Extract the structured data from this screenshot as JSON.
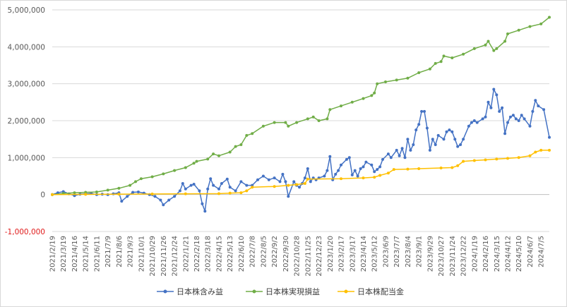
{
  "chart_data": {
    "type": "line",
    "title": "",
    "xlabel": "",
    "ylabel": "",
    "ylim": [
      -1000000,
      5000000
    ],
    "yticks": [
      -1000000,
      0,
      1000000,
      2000000,
      3000000,
      4000000,
      5000000
    ],
    "ytick_labels": [
      "-1,000,000",
      "0",
      "1,000,000",
      "2,000,000",
      "3,000,000",
      "4,000,000",
      "5,000,000"
    ],
    "negative_tick_color": "#e01b1b",
    "grid": "horizontal",
    "legend_position": "bottom",
    "x_start": "2021/2/19",
    "x_end": "2024/7/26",
    "xtick_labels": [
      "2021/2/19",
      "2021/3/19",
      "2021/4/16",
      "2021/5/14",
      "2021/6/11",
      "2021/7/9",
      "2021/8/6",
      "2021/9/3",
      "2021/10/1",
      "2021/10/29",
      "2021/11/26",
      "2021/12/24",
      "2022/1/21",
      "2022/2/18",
      "2022/3/18",
      "2022/4/15",
      "2022/5/13",
      "2022/6/10",
      "2022/7/8",
      "2022/8/5",
      "2022/9/2",
      "2022/9/30",
      "2022/10/28",
      "2022/11/25",
      "2022/12/23",
      "2023/1/20",
      "2023/2/17",
      "2023/3/17",
      "2023/4/14",
      "2023/5/12",
      "2023/6/9",
      "2023/7/7",
      "2023/8/4",
      "2023/9/1",
      "2023/9/29",
      "2023/10/27",
      "2023/11/24",
      "2023/12/22",
      "2024/1/19",
      "2024/2/16",
      "2024/3/15",
      "2024/4/12",
      "2024/5/10",
      "2024/6/7",
      "2024/7/5"
    ],
    "series": [
      {
        "name": "日本株含み益",
        "color": "#4472c4",
        "points": [
          [
            "2021/2/19",
            0
          ],
          [
            "2021/3/5",
            50000
          ],
          [
            "2021/3/19",
            80000
          ],
          [
            "2021/4/2",
            20000
          ],
          [
            "2021/4/16",
            -30000
          ],
          [
            "2021/4/30",
            10000
          ],
          [
            "2021/5/14",
            20000
          ],
          [
            "2021/5/28",
            30000
          ],
          [
            "2021/6/11",
            0
          ],
          [
            "2021/6/25",
            10000
          ],
          [
            "2021/7/9",
            0
          ],
          [
            "2021/7/23",
            20000
          ],
          [
            "2021/8/6",
            50000
          ],
          [
            "2021/8/13",
            -180000
          ],
          [
            "2021/8/27",
            -50000
          ],
          [
            "2021/9/10",
            60000
          ],
          [
            "2021/9/24",
            70000
          ],
          [
            "2021/10/8",
            40000
          ],
          [
            "2021/10/22",
            0
          ],
          [
            "2021/11/5",
            -50000
          ],
          [
            "2021/11/19",
            -150000
          ],
          [
            "2021/11/26",
            -280000
          ],
          [
            "2021/12/10",
            -150000
          ],
          [
            "2021/12/24",
            -50000
          ],
          [
            "2022/1/7",
            100000
          ],
          [
            "2022/1/14",
            300000
          ],
          [
            "2022/1/21",
            150000
          ],
          [
            "2022/2/4",
            250000
          ],
          [
            "2022/2/11",
            280000
          ],
          [
            "2022/2/25",
            100000
          ],
          [
            "2022/3/4",
            -250000
          ],
          [
            "2022/3/11",
            -450000
          ],
          [
            "2022/3/18",
            150000
          ],
          [
            "2022/3/25",
            430000
          ],
          [
            "2022/4/1",
            250000
          ],
          [
            "2022/4/15",
            150000
          ],
          [
            "2022/4/22",
            300000
          ],
          [
            "2022/5/6",
            420000
          ],
          [
            "2022/5/13",
            200000
          ],
          [
            "2022/5/27",
            100000
          ],
          [
            "2022/6/10",
            350000
          ],
          [
            "2022/6/24",
            250000
          ],
          [
            "2022/7/8",
            250000
          ],
          [
            "2022/7/22",
            400000
          ],
          [
            "2022/8/5",
            500000
          ],
          [
            "2022/8/19",
            400000
          ],
          [
            "2022/9/2",
            450000
          ],
          [
            "2022/9/16",
            350000
          ],
          [
            "2022/9/23",
            550000
          ],
          [
            "2022/9/30",
            350000
          ],
          [
            "2022/10/7",
            -50000
          ],
          [
            "2022/10/21",
            350000
          ],
          [
            "2022/10/28",
            250000
          ],
          [
            "2022/11/4",
            200000
          ],
          [
            "2022/11/11",
            300000
          ],
          [
            "2022/11/18",
            450000
          ],
          [
            "2022/11/25",
            700000
          ],
          [
            "2022/12/2",
            350000
          ],
          [
            "2022/12/9",
            450000
          ],
          [
            "2022/12/16",
            400000
          ],
          [
            "2022/12/23",
            450000
          ],
          [
            "2023/1/6",
            500000
          ],
          [
            "2023/1/13",
            650000
          ],
          [
            "2023/1/20",
            1030000
          ],
          [
            "2023/1/27",
            400000
          ],
          [
            "2023/2/3",
            550000
          ],
          [
            "2023/2/10",
            650000
          ],
          [
            "2023/2/17",
            800000
          ],
          [
            "2023/3/3",
            950000
          ],
          [
            "2023/3/10",
            1000000
          ],
          [
            "2023/3/17",
            530000
          ],
          [
            "2023/3/24",
            650000
          ],
          [
            "2023/3/31",
            500000
          ],
          [
            "2023/4/7",
            700000
          ],
          [
            "2023/4/14",
            750000
          ],
          [
            "2023/4/21",
            880000
          ],
          [
            "2023/5/5",
            800000
          ],
          [
            "2023/5/12",
            620000
          ],
          [
            "2023/5/19",
            680000
          ],
          [
            "2023/5/26",
            750000
          ],
          [
            "2023/6/2",
            950000
          ],
          [
            "2023/6/16",
            1100000
          ],
          [
            "2023/6/23",
            1000000
          ],
          [
            "2023/7/7",
            1200000
          ],
          [
            "2023/7/14",
            1050000
          ],
          [
            "2023/7/21",
            1250000
          ],
          [
            "2023/7/28",
            1000000
          ],
          [
            "2023/8/4",
            1500000
          ],
          [
            "2023/8/11",
            1200000
          ],
          [
            "2023/8/18",
            1350000
          ],
          [
            "2023/8/25",
            1750000
          ],
          [
            "2023/9/1",
            1900000
          ],
          [
            "2023/9/8",
            2250000
          ],
          [
            "2023/9/15",
            2250000
          ],
          [
            "2023/9/22",
            1800000
          ],
          [
            "2023/9/29",
            1200000
          ],
          [
            "2023/10/6",
            1500000
          ],
          [
            "2023/10/13",
            1350000
          ],
          [
            "2023/10/20",
            1600000
          ],
          [
            "2023/11/3",
            1500000
          ],
          [
            "2023/11/10",
            1700000
          ],
          [
            "2023/11/17",
            1750000
          ],
          [
            "2023/11/24",
            1700000
          ],
          [
            "2023/12/1",
            1500000
          ],
          [
            "2023/12/8",
            1300000
          ],
          [
            "2023/12/15",
            1350000
          ],
          [
            "2023/12/22",
            1500000
          ],
          [
            "2024/1/5",
            1850000
          ],
          [
            "2024/1/12",
            1950000
          ],
          [
            "2024/1/19",
            2000000
          ],
          [
            "2024/1/26",
            1950000
          ],
          [
            "2024/2/9",
            2050000
          ],
          [
            "2024/2/16",
            2100000
          ],
          [
            "2024/2/23",
            2500000
          ],
          [
            "2024/3/1",
            2350000
          ],
          [
            "2024/3/8",
            2850000
          ],
          [
            "2024/3/15",
            2700000
          ],
          [
            "2024/3/22",
            2250000
          ],
          [
            "2024/3/29",
            2350000
          ],
          [
            "2024/4/5",
            1650000
          ],
          [
            "2024/4/12",
            1950000
          ],
          [
            "2024/4/19",
            2100000
          ],
          [
            "2024/4/26",
            2150000
          ],
          [
            "2024/5/3",
            2050000
          ],
          [
            "2024/5/10",
            2000000
          ],
          [
            "2024/5/17",
            2150000
          ],
          [
            "2024/5/24",
            2050000
          ],
          [
            "2024/6/7",
            1850000
          ],
          [
            "2024/6/14",
            2250000
          ],
          [
            "2024/6/21",
            2550000
          ],
          [
            "2024/6/28",
            2400000
          ],
          [
            "2024/7/12",
            2300000
          ],
          [
            "2024/7/26",
            1550000
          ]
        ]
      },
      {
        "name": "日本株実現損益",
        "color": "#70ad47",
        "points": [
          [
            "2021/2/19",
            0
          ],
          [
            "2021/3/19",
            30000
          ],
          [
            "2021/4/16",
            50000
          ],
          [
            "2021/5/14",
            60000
          ],
          [
            "2021/6/11",
            70000
          ],
          [
            "2021/7/9",
            120000
          ],
          [
            "2021/8/6",
            170000
          ],
          [
            "2021/9/3",
            250000
          ],
          [
            "2021/9/17",
            350000
          ],
          [
            "2021/10/1",
            430000
          ],
          [
            "2021/10/29",
            480000
          ],
          [
            "2021/11/26",
            560000
          ],
          [
            "2021/12/24",
            650000
          ],
          [
            "2022/1/21",
            730000
          ],
          [
            "2022/2/11",
            850000
          ],
          [
            "2022/2/18",
            900000
          ],
          [
            "2022/3/18",
            960000
          ],
          [
            "2022/4/1",
            1100000
          ],
          [
            "2022/4/15",
            1050000
          ],
          [
            "2022/5/13",
            1150000
          ],
          [
            "2022/5/27",
            1300000
          ],
          [
            "2022/6/10",
            1350000
          ],
          [
            "2022/6/24",
            1600000
          ],
          [
            "2022/7/8",
            1650000
          ],
          [
            "2022/8/5",
            1850000
          ],
          [
            "2022/9/2",
            1950000
          ],
          [
            "2022/9/30",
            1950000
          ],
          [
            "2022/10/7",
            1850000
          ],
          [
            "2022/10/28",
            1950000
          ],
          [
            "2022/11/25",
            2050000
          ],
          [
            "2022/12/9",
            2100000
          ],
          [
            "2022/12/23",
            2000000
          ],
          [
            "2023/1/13",
            2050000
          ],
          [
            "2023/1/20",
            2300000
          ],
          [
            "2023/2/17",
            2400000
          ],
          [
            "2023/3/17",
            2500000
          ],
          [
            "2023/4/14",
            2600000
          ],
          [
            "2023/5/5",
            2680000
          ],
          [
            "2023/5/12",
            2750000
          ],
          [
            "2023/5/19",
            3000000
          ],
          [
            "2023/6/9",
            3050000
          ],
          [
            "2023/7/7",
            3100000
          ],
          [
            "2023/8/4",
            3150000
          ],
          [
            "2023/9/1",
            3300000
          ],
          [
            "2023/9/29",
            3400000
          ],
          [
            "2023/10/13",
            3550000
          ],
          [
            "2023/10/27",
            3600000
          ],
          [
            "2023/11/3",
            3750000
          ],
          [
            "2023/11/24",
            3700000
          ],
          [
            "2023/12/22",
            3800000
          ],
          [
            "2024/1/19",
            3950000
          ],
          [
            "2024/2/16",
            4050000
          ],
          [
            "2024/2/23",
            4150000
          ],
          [
            "2024/3/8",
            3900000
          ],
          [
            "2024/3/15",
            3950000
          ],
          [
            "2024/4/5",
            4150000
          ],
          [
            "2024/4/12",
            4350000
          ],
          [
            "2024/5/10",
            4450000
          ],
          [
            "2024/6/7",
            4550000
          ],
          [
            "2024/7/5",
            4620000
          ],
          [
            "2024/7/26",
            4800000
          ]
        ]
      },
      {
        "name": "日本株配当金",
        "color": "#ffc000",
        "points": [
          [
            "2021/2/19",
            0
          ],
          [
            "2021/5/14",
            5000
          ],
          [
            "2021/8/6",
            10000
          ],
          [
            "2021/10/29",
            15000
          ],
          [
            "2022/1/21",
            20000
          ],
          [
            "2022/4/15",
            25000
          ],
          [
            "2022/5/13",
            40000
          ],
          [
            "2022/6/10",
            50000
          ],
          [
            "2022/6/24",
            100000
          ],
          [
            "2022/7/8",
            200000
          ],
          [
            "2022/9/2",
            220000
          ],
          [
            "2022/10/7",
            250000
          ],
          [
            "2022/10/28",
            270000
          ],
          [
            "2022/11/18",
            300000
          ],
          [
            "2022/11/25",
            420000
          ],
          [
            "2023/2/17",
            430000
          ],
          [
            "2023/4/14",
            450000
          ],
          [
            "2023/5/12",
            470000
          ],
          [
            "2023/5/26",
            520000
          ],
          [
            "2023/6/16",
            580000
          ],
          [
            "2023/6/30",
            680000
          ],
          [
            "2023/8/4",
            690000
          ],
          [
            "2023/9/1",
            700000
          ],
          [
            "2023/10/27",
            720000
          ],
          [
            "2023/11/24",
            730000
          ],
          [
            "2023/12/8",
            780000
          ],
          [
            "2023/12/22",
            900000
          ],
          [
            "2024/1/19",
            920000
          ],
          [
            "2024/2/16",
            940000
          ],
          [
            "2024/3/15",
            960000
          ],
          [
            "2024/4/12",
            980000
          ],
          [
            "2024/5/10",
            1000000
          ],
          [
            "2024/6/7",
            1050000
          ],
          [
            "2024/6/21",
            1150000
          ],
          [
            "2024/7/5",
            1200000
          ],
          [
            "2024/7/26",
            1200000
          ]
        ]
      }
    ]
  }
}
